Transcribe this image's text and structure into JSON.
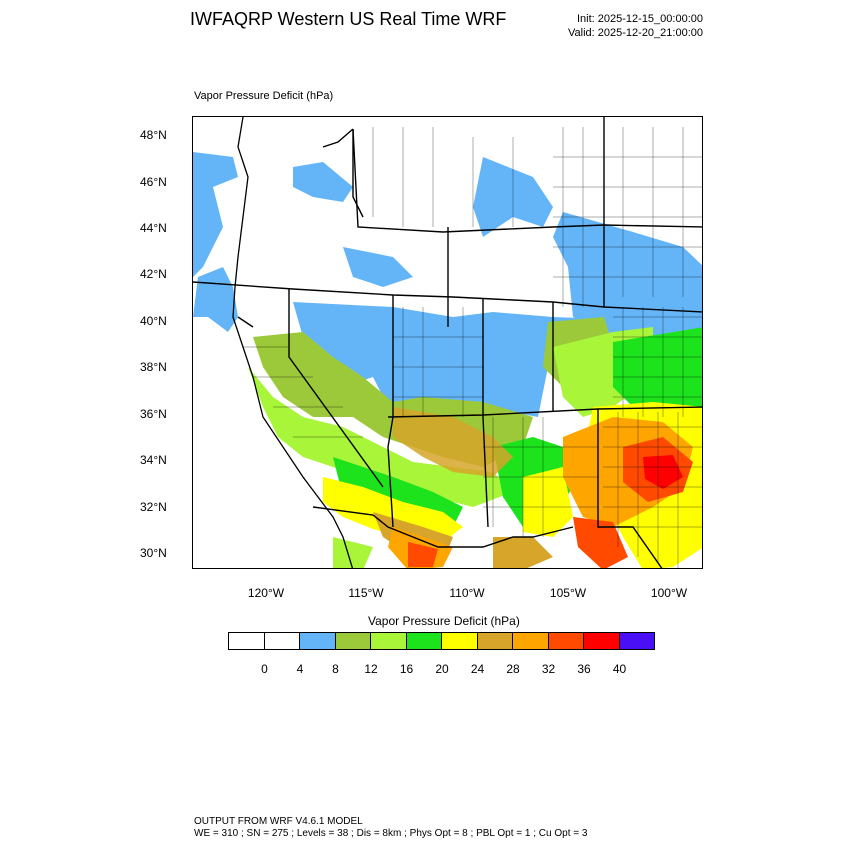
{
  "header": {
    "title": "IWFAQRP Western US Real Time WRF",
    "init": "Init: 2025-12-15_00:00:00",
    "valid": "Valid: 2025-12-20_21:00:00"
  },
  "map": {
    "variable_label": "Vapor Pressure Deficit   (hPa)",
    "lat_labels": [
      "48°N",
      "46°N",
      "44°N",
      "42°N",
      "40°N",
      "38°N",
      "36°N",
      "34°N",
      "32°N",
      "30°N"
    ],
    "lon_labels": [
      "120°W",
      "115°W",
      "110°W",
      "105°W",
      "100°W"
    ],
    "coastline_color": "#000000"
  },
  "legend": {
    "title": "Vapor Pressure Deficit  (hPa)",
    "colors": [
      "#ffffff",
      "#ffffff",
      "#63b5f8",
      "#9cc93a",
      "#a8f53a",
      "#1de31d",
      "#ffff00",
      "#d6a52a",
      "#ffa500",
      "#ff4a00",
      "#ff0000",
      "#4a10f5"
    ],
    "ticks": [
      "0",
      "4",
      "8",
      "12",
      "16",
      "20",
      "24",
      "28",
      "32",
      "36",
      "40"
    ]
  },
  "footer": {
    "line1": "OUTPUT FROM WRF V4.6.1 MODEL",
    "line2": "WE = 310 ; SN = 275 ; Levels = 38 ; Dis = 8km ; Phys Opt = 8 ; PBL Opt = 1 ; Cu Opt = 3"
  }
}
